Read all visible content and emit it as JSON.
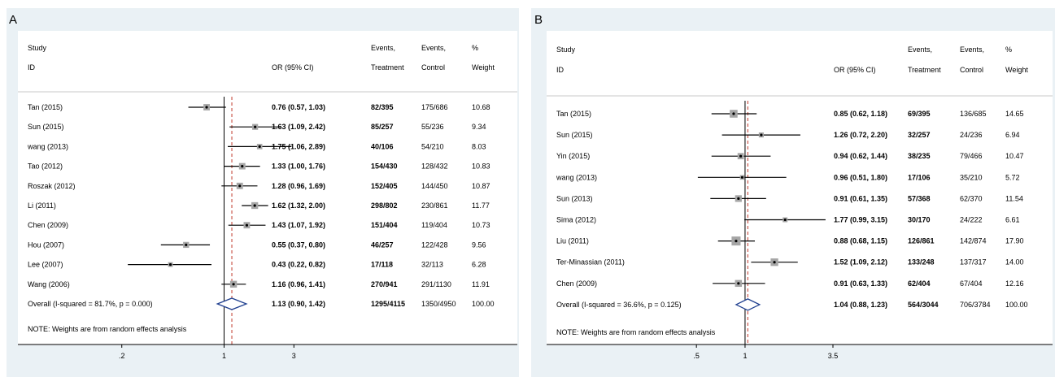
{
  "chart_data": [
    {
      "type": "forest",
      "panel": "A",
      "headers": {
        "study": "Study",
        "id": "ID",
        "or": "OR (95% CI)",
        "events_t1": "Events,",
        "events_t2": "Treatment",
        "events_c1": "Events,",
        "events_c2": "Control",
        "weight1": "%",
        "weight2": "Weight"
      },
      "xscale": "log",
      "xlim": [
        0.125,
        4.5
      ],
      "ticks": [
        {
          "value": 0.2,
          "label": ".2"
        },
        {
          "value": 1,
          "label": "1"
        },
        {
          "value": 3,
          "label": "3"
        }
      ],
      "studies": [
        {
          "id": "Tan (2015)",
          "or": 0.76,
          "lo": 0.57,
          "hi": 1.03,
          "ci_text": "0.76 (0.57, 1.03)",
          "treat": "82/395",
          "ctrl": "175/686",
          "weight": "10.68"
        },
        {
          "id": "Sun (2015)",
          "or": 1.63,
          "lo": 1.09,
          "hi": 2.42,
          "ci_text": "1.63 (1.09, 2.42)",
          "treat": "85/257",
          "ctrl": "55/236",
          "weight": "9.34"
        },
        {
          "id": "wang  (2013)",
          "or": 1.75,
          "lo": 1.06,
          "hi": 2.89,
          "ci_text": "1.75 (1.06, 2.89)",
          "treat": "40/106",
          "ctrl": "54/210",
          "weight": "8.03"
        },
        {
          "id": "Tao (2012)",
          "or": 1.33,
          "lo": 1.0,
          "hi": 1.76,
          "ci_text": "1.33 (1.00, 1.76)",
          "treat": "154/430",
          "ctrl": "128/432",
          "weight": "10.83"
        },
        {
          "id": "Roszak (2012)",
          "or": 1.28,
          "lo": 0.96,
          "hi": 1.69,
          "ci_text": "1.28 (0.96, 1.69)",
          "treat": "152/405",
          "ctrl": "144/450",
          "weight": "10.87"
        },
        {
          "id": "Li (2011)",
          "or": 1.62,
          "lo": 1.32,
          "hi": 2.0,
          "ci_text": "1.62 (1.32, 2.00)",
          "treat": "298/802",
          "ctrl": "230/861",
          "weight": "11.77"
        },
        {
          "id": "Chen (2009)",
          "or": 1.43,
          "lo": 1.07,
          "hi": 1.92,
          "ci_text": "1.43 (1.07, 1.92)",
          "treat": "151/404",
          "ctrl": "119/404",
          "weight": "10.73"
        },
        {
          "id": "Hou (2007)",
          "or": 0.55,
          "lo": 0.37,
          "hi": 0.8,
          "ci_text": "0.55 (0.37, 0.80)",
          "treat": "46/257",
          "ctrl": "122/428",
          "weight": "9.56"
        },
        {
          "id": "Lee (2007)",
          "or": 0.43,
          "lo": 0.22,
          "hi": 0.82,
          "ci_text": "0.43 (0.22, 0.82)",
          "treat": "17/118",
          "ctrl": "32/113",
          "weight": "6.28"
        },
        {
          "id": "Wang (2006)",
          "or": 1.16,
          "lo": 0.96,
          "hi": 1.41,
          "ci_text": "1.16 (0.96, 1.41)",
          "treat": "270/941",
          "ctrl": "291/1130",
          "weight": "11.91"
        }
      ],
      "overall": {
        "label": "Overall  (I-squared = 81.7%, p = 0.000)",
        "or": 1.13,
        "lo": 0.9,
        "hi": 1.42,
        "ci_text": "1.13 (0.90, 1.42)",
        "treat": "1295/4115",
        "ctrl": "1350/4950",
        "weight": "100.00"
      },
      "note": "NOTE: Weights are from random effects analysis"
    },
    {
      "type": "forest",
      "panel": "B",
      "headers": {
        "study": "Study",
        "id": "ID",
        "or": "OR (95% CI)",
        "events_t1": "Events,",
        "events_t2": "Treatment",
        "events_c1": "Events,",
        "events_c2": "Control",
        "weight1": "%",
        "weight2": "Weight"
      },
      "xscale": "log",
      "xlim": [
        0.286,
        3.5
      ],
      "ticks": [
        {
          "value": 0.5,
          "label": ".5"
        },
        {
          "value": 1,
          "label": "1"
        },
        {
          "value": 3.5,
          "label": "3.5"
        }
      ],
      "studies": [
        {
          "id": "Tan (2015)",
          "or": 0.85,
          "lo": 0.62,
          "hi": 1.18,
          "ci_text": "0.85 (0.62, 1.18)",
          "treat": "69/395",
          "ctrl": "136/685",
          "weight": "14.65"
        },
        {
          "id": "Sun (2015)",
          "or": 1.26,
          "lo": 0.72,
          "hi": 2.2,
          "ci_text": "1.26 (0.72, 2.20)",
          "treat": "32/257",
          "ctrl": "24/236",
          "weight": "6.94"
        },
        {
          "id": "Yin (2015)",
          "or": 0.94,
          "lo": 0.62,
          "hi": 1.44,
          "ci_text": "0.94 (0.62, 1.44)",
          "treat": "38/235",
          "ctrl": "79/466",
          "weight": "10.47"
        },
        {
          "id": "wang (2013)",
          "or": 0.96,
          "lo": 0.51,
          "hi": 1.8,
          "ci_text": "0.96 (0.51, 1.80)",
          "treat": "17/106",
          "ctrl": "35/210",
          "weight": "5.72"
        },
        {
          "id": "Sun (2013)",
          "or": 0.91,
          "lo": 0.61,
          "hi": 1.35,
          "ci_text": "0.91 (0.61, 1.35)",
          "treat": "57/368",
          "ctrl": "62/370",
          "weight": "11.54"
        },
        {
          "id": "Sima (2012)",
          "or": 1.77,
          "lo": 0.99,
          "hi": 3.15,
          "ci_text": "1.77 (0.99, 3.15)",
          "treat": "30/170",
          "ctrl": "24/222",
          "weight": "6.61"
        },
        {
          "id": "Liu (2011)",
          "or": 0.88,
          "lo": 0.68,
          "hi": 1.15,
          "ci_text": "0.88 (0.68, 1.15)",
          "treat": "126/861",
          "ctrl": "142/874",
          "weight": "17.90"
        },
        {
          "id": "Ter-Minassian (2011)",
          "or": 1.52,
          "lo": 1.09,
          "hi": 2.12,
          "ci_text": "1.52 (1.09, 2.12)",
          "treat": "133/248",
          "ctrl": "137/317",
          "weight": "14.00"
        },
        {
          "id": "Chen (2009)",
          "or": 0.91,
          "lo": 0.63,
          "hi": 1.33,
          "ci_text": "0.91 (0.63, 1.33)",
          "treat": "62/404",
          "ctrl": "67/404",
          "weight": "12.16"
        }
      ],
      "overall": {
        "label": "Overall  (I-squared = 36.6%, p = 0.125)",
        "or": 1.04,
        "lo": 0.88,
        "hi": 1.23,
        "ci_text": "1.04 (0.88, 1.23)",
        "treat": "564/3044",
        "ctrl": "706/3784",
        "weight": "100.00"
      },
      "note": "NOTE: Weights are from random effects analysis"
    }
  ]
}
